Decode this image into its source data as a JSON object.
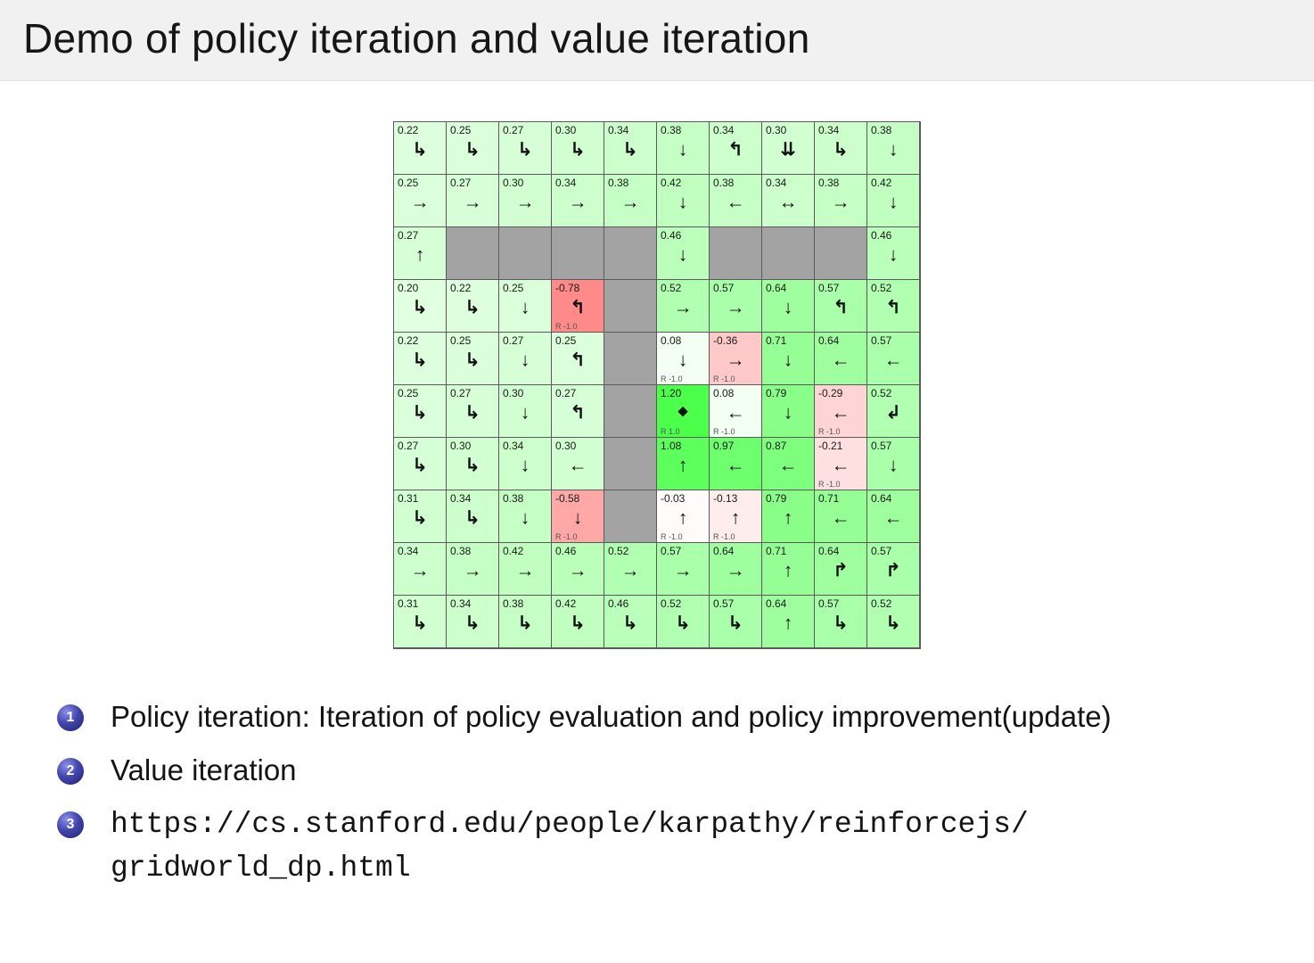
{
  "slide": {
    "title": "Demo of policy iteration and value iteration",
    "bullets": [
      {
        "num": "1",
        "text": "Policy iteration: Iteration of policy evaluation and policy improvement(update)",
        "mono": false
      },
      {
        "num": "2",
        "text": "Value iteration",
        "mono": false
      },
      {
        "num": "3",
        "text": "https://cs.stanford.edu/people/karpathy/reinforcejs/gridworld_dp.html",
        "mono": true
      }
    ]
  },
  "grid": {
    "rows": 10,
    "cols": 10,
    "colors": {
      "wall": "#a3a3a3",
      "border": "#5a5a5a",
      "goal_reward_color": "#55aa55",
      "negative_color": "#ff8a8a"
    },
    "cells": [
      [
        {
          "v": "0.22",
          "a": "↳"
        },
        {
          "v": "0.25",
          "a": "↳"
        },
        {
          "v": "0.27",
          "a": "↳"
        },
        {
          "v": "0.30",
          "a": "↳"
        },
        {
          "v": "0.34",
          "a": "↳"
        },
        {
          "v": "0.38",
          "a": "↓"
        },
        {
          "v": "0.34",
          "a": "↰"
        },
        {
          "v": "0.30",
          "a": "⇊"
        },
        {
          "v": "0.34",
          "a": "↳"
        },
        {
          "v": "0.38",
          "a": "↓"
        }
      ],
      [
        {
          "v": "0.25",
          "a": "→"
        },
        {
          "v": "0.27",
          "a": "→"
        },
        {
          "v": "0.30",
          "a": "→"
        },
        {
          "v": "0.34",
          "a": "→"
        },
        {
          "v": "0.38",
          "a": "→"
        },
        {
          "v": "0.42",
          "a": "↓"
        },
        {
          "v": "0.38",
          "a": "←"
        },
        {
          "v": "0.34",
          "a": "↔"
        },
        {
          "v": "0.38",
          "a": "→"
        },
        {
          "v": "0.42",
          "a": "↓"
        }
      ],
      [
        {
          "v": "0.27",
          "a": "↑"
        },
        {
          "t": "w"
        },
        {
          "t": "w"
        },
        {
          "t": "w"
        },
        {
          "t": "w"
        },
        {
          "v": "0.46",
          "a": "↓"
        },
        {
          "t": "w"
        },
        {
          "t": "w"
        },
        {
          "t": "w"
        },
        {
          "v": "0.46",
          "a": "↓"
        }
      ],
      [
        {
          "v": "0.20",
          "a": "↳"
        },
        {
          "v": "0.22",
          "a": "↳"
        },
        {
          "v": "0.25",
          "a": "↓"
        },
        {
          "v": "-0.78",
          "a": "↰",
          "r": "R -1.0"
        },
        {
          "t": "w"
        },
        {
          "v": "0.52",
          "a": "→"
        },
        {
          "v": "0.57",
          "a": "→"
        },
        {
          "v": "0.64",
          "a": "↓"
        },
        {
          "v": "0.57",
          "a": "↰"
        },
        {
          "v": "0.52",
          "a": "↰"
        }
      ],
      [
        {
          "v": "0.22",
          "a": "↳"
        },
        {
          "v": "0.25",
          "a": "↳"
        },
        {
          "v": "0.27",
          "a": "↓"
        },
        {
          "v": "0.25",
          "a": "↰"
        },
        {
          "t": "w"
        },
        {
          "v": "0.08",
          "a": "↓",
          "r": "R -1.0"
        },
        {
          "v": "-0.36",
          "a": "→",
          "r": "R -1.0"
        },
        {
          "v": "0.71",
          "a": "↓"
        },
        {
          "v": "0.64",
          "a": "←"
        },
        {
          "v": "0.57",
          "a": "←"
        }
      ],
      [
        {
          "v": "0.25",
          "a": "↳"
        },
        {
          "v": "0.27",
          "a": "↳"
        },
        {
          "v": "0.30",
          "a": "↓"
        },
        {
          "v": "0.27",
          "a": "↰"
        },
        {
          "t": "w"
        },
        {
          "v": "1.20",
          "a": "◆",
          "t": "g",
          "r": "R 1.0"
        },
        {
          "v": "0.08",
          "a": "←",
          "r": "R -1.0"
        },
        {
          "v": "0.79",
          "a": "↓"
        },
        {
          "v": "-0.29",
          "a": "←",
          "r": "R -1.0"
        },
        {
          "v": "0.52",
          "a": "↲"
        }
      ],
      [
        {
          "v": "0.27",
          "a": "↳"
        },
        {
          "v": "0.30",
          "a": "↳"
        },
        {
          "v": "0.34",
          "a": "↓"
        },
        {
          "v": "0.30",
          "a": "←"
        },
        {
          "t": "w"
        },
        {
          "v": "1.08",
          "a": "↑"
        },
        {
          "v": "0.97",
          "a": "←"
        },
        {
          "v": "0.87",
          "a": "←"
        },
        {
          "v": "-0.21",
          "a": "←",
          "r": "R -1.0"
        },
        {
          "v": "0.57",
          "a": "↓"
        }
      ],
      [
        {
          "v": "0.31",
          "a": "↳"
        },
        {
          "v": "0.34",
          "a": "↳"
        },
        {
          "v": "0.38",
          "a": "↓"
        },
        {
          "v": "-0.58",
          "a": "↓",
          "r": "R -1.0"
        },
        {
          "t": "w"
        },
        {
          "v": "-0.03",
          "a": "↑",
          "r": "R -1.0"
        },
        {
          "v": "-0.13",
          "a": "↑",
          "r": "R -1.0"
        },
        {
          "v": "0.79",
          "a": "↑"
        },
        {
          "v": "0.71",
          "a": "←"
        },
        {
          "v": "0.64",
          "a": "←"
        }
      ],
      [
        {
          "v": "0.34",
          "a": "→"
        },
        {
          "v": "0.38",
          "a": "→"
        },
        {
          "v": "0.42",
          "a": "→"
        },
        {
          "v": "0.46",
          "a": "→"
        },
        {
          "v": "0.52",
          "a": "→"
        },
        {
          "v": "0.57",
          "a": "→"
        },
        {
          "v": "0.64",
          "a": "→"
        },
        {
          "v": "0.71",
          "a": "↑"
        },
        {
          "v": "0.64",
          "a": "↱"
        },
        {
          "v": "0.57",
          "a": "↱"
        }
      ],
      [
        {
          "v": "0.31",
          "a": "↳"
        },
        {
          "v": "0.34",
          "a": "↳"
        },
        {
          "v": "0.38",
          "a": "↳"
        },
        {
          "v": "0.42",
          "a": "↳"
        },
        {
          "v": "0.46",
          "a": "↳"
        },
        {
          "v": "0.52",
          "a": "↳"
        },
        {
          "v": "0.57",
          "a": "↳"
        },
        {
          "v": "0.64",
          "a": "↑"
        },
        {
          "v": "0.57",
          "a": "↳"
        },
        {
          "v": "0.52",
          "a": "↳"
        }
      ]
    ]
  }
}
